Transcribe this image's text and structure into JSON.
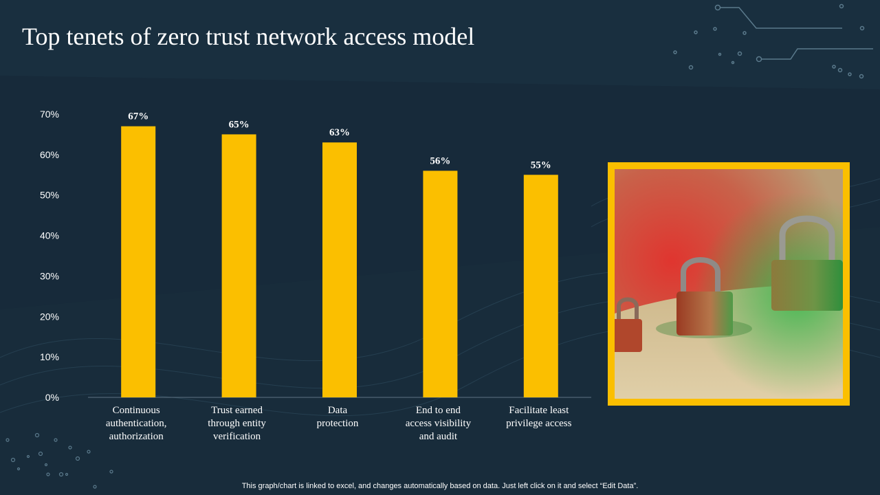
{
  "slide": {
    "title": "Top tenets of zero trust network access model",
    "footnote": "This graph/chart is linked to excel,  and changes automatically based on data. Just left click on it and select “Edit Data”."
  },
  "colors": {
    "background": "#172a3a",
    "bar": "#fbbf00",
    "text": "#ffffff",
    "frame": "#fbbf00"
  },
  "image": {
    "subject": "padlocks-photo"
  },
  "chart_data": {
    "type": "bar",
    "title": "",
    "xlabel": "",
    "ylabel": "",
    "ylim": [
      0,
      70
    ],
    "yticks": [
      "0%",
      "10%",
      "20%",
      "30%",
      "40%",
      "50%",
      "60%",
      "70%"
    ],
    "categories": [
      [
        "Continuous",
        "authentication,",
        "authorization"
      ],
      [
        "Trust earned",
        "through  entity",
        "verification"
      ],
      [
        "Data",
        "protection"
      ],
      [
        "End to end",
        "access visibility",
        "and audit"
      ],
      [
        "Facilitate least",
        "privilege access"
      ]
    ],
    "values": [
      67,
      65,
      63,
      56,
      55
    ],
    "data_labels": [
      "67%",
      "65%",
      "63%",
      "56%",
      "55%"
    ],
    "grid": false,
    "legend": "none"
  }
}
